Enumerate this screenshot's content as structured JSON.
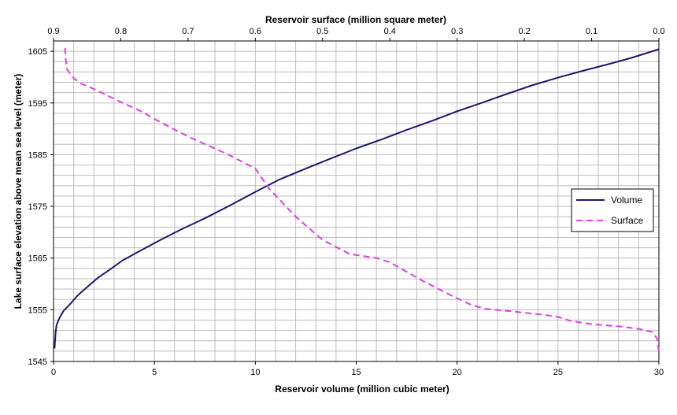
{
  "chart_data": {
    "type": "line",
    "top_axis": {
      "label": "Reservoir surface (million square meter)",
      "range": [
        0.9,
        0.0
      ],
      "ticks": [
        0.9,
        0.8,
        0.7,
        0.6,
        0.5,
        0.4,
        0.3,
        0.2,
        0.1,
        0.0
      ],
      "tick_labels": [
        "0.9",
        "0.8",
        "0.7",
        "0.6",
        "0.5",
        "0.4",
        "0.3",
        "0.2",
        "0.1",
        "0.0"
      ]
    },
    "bottom_axis": {
      "label": "Reservoir volume (million cubic meter)",
      "range": [
        0,
        30
      ],
      "ticks": [
        0,
        5,
        10,
        15,
        20,
        25,
        30
      ],
      "tick_labels": [
        "0",
        "5",
        "10",
        "15",
        "20",
        "25",
        "30"
      ]
    },
    "y_axis": {
      "label": "Lake surface elevation above mean sea level (meter)",
      "range": [
        1545,
        1607
      ],
      "ticks": [
        1545,
        1555,
        1565,
        1575,
        1585,
        1595,
        1605
      ],
      "tick_labels": [
        "1545",
        "1555",
        "1565",
        "1575",
        "1585",
        "1595",
        "1605"
      ]
    },
    "grid": true,
    "legend_position": "right",
    "series": [
      {
        "name": "Volume",
        "axis": "bottom",
        "color": "#1a1a6e",
        "style": "solid",
        "points": [
          [
            0.05,
            1547.5
          ],
          [
            0.1,
            1550.5
          ],
          [
            0.15,
            1552.0
          ],
          [
            0.3,
            1553.5
          ],
          [
            0.5,
            1554.8
          ],
          [
            0.8,
            1556.0
          ],
          [
            1.2,
            1557.8
          ],
          [
            1.7,
            1559.5
          ],
          [
            2.2,
            1561.2
          ],
          [
            2.8,
            1562.8
          ],
          [
            3.4,
            1564.5
          ],
          [
            4.2,
            1566.2
          ],
          [
            5.2,
            1568.3
          ],
          [
            6.3,
            1570.5
          ],
          [
            7.5,
            1572.7
          ],
          [
            8.8,
            1575.3
          ],
          [
            10.0,
            1577.8
          ],
          [
            11.2,
            1580.2
          ],
          [
            12.5,
            1582.3
          ],
          [
            13.7,
            1584.2
          ],
          [
            15.0,
            1586.2
          ],
          [
            16.3,
            1588.0
          ],
          [
            17.5,
            1589.8
          ],
          [
            18.8,
            1591.6
          ],
          [
            20.0,
            1593.4
          ],
          [
            21.2,
            1595.0
          ],
          [
            22.5,
            1596.8
          ],
          [
            23.7,
            1598.4
          ],
          [
            25.0,
            1599.9
          ],
          [
            26.2,
            1601.2
          ],
          [
            27.5,
            1602.5
          ],
          [
            28.7,
            1603.8
          ],
          [
            30.0,
            1605.4
          ]
        ]
      },
      {
        "name": "Surface",
        "axis": "top",
        "color": "#e040e0",
        "style": "dashed",
        "points": [
          [
            0.0,
            1547.0
          ],
          [
            0.003,
            1549.5
          ],
          [
            0.01,
            1550.7
          ],
          [
            0.03,
            1551.3
          ],
          [
            0.06,
            1551.8
          ],
          [
            0.1,
            1552.2
          ],
          [
            0.13,
            1552.8
          ],
          [
            0.15,
            1553.6
          ],
          [
            0.17,
            1554.0
          ],
          [
            0.22,
            1554.7
          ],
          [
            0.26,
            1555.2
          ],
          [
            0.28,
            1556.0
          ],
          [
            0.3,
            1557.2
          ],
          [
            0.35,
            1560.5
          ],
          [
            0.4,
            1564.2
          ],
          [
            0.42,
            1565.0
          ],
          [
            0.46,
            1565.8
          ],
          [
            0.5,
            1568.5
          ],
          [
            0.54,
            1573.0
          ],
          [
            0.58,
            1578.5
          ],
          [
            0.6,
            1582.3
          ],
          [
            0.64,
            1585.0
          ],
          [
            0.7,
            1588.5
          ],
          [
            0.74,
            1591.2
          ],
          [
            0.77,
            1593.4
          ],
          [
            0.8,
            1595.2
          ],
          [
            0.84,
            1597.7
          ],
          [
            0.86,
            1598.8
          ],
          [
            0.87,
            1599.8
          ],
          [
            0.88,
            1601.5
          ],
          [
            0.882,
            1603.5
          ],
          [
            0.883,
            1606.0
          ]
        ]
      }
    ]
  }
}
